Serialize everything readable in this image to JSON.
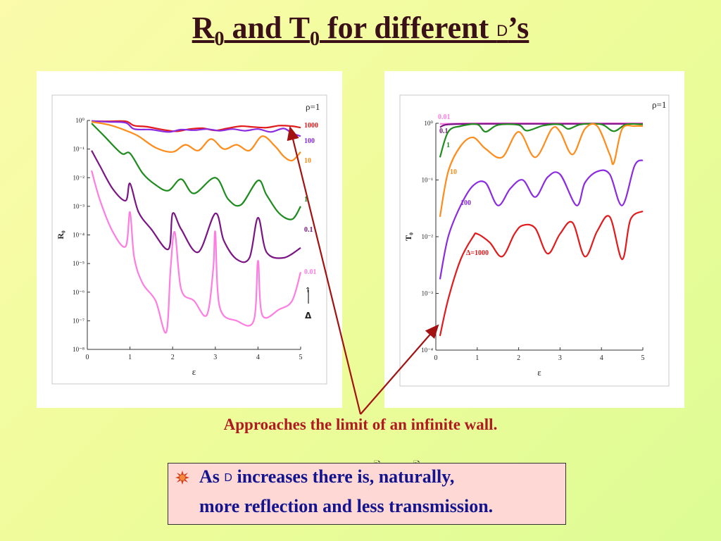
{
  "slide": {
    "title_r": "R",
    "title_sub0": "0",
    "title_and": " and T",
    "title_sub1": "0",
    "title_for": " for  different ",
    "title_delta": "D",
    "title_suffix": "’s",
    "caption": "Approaches the limit of an infinite wall.",
    "bullet_line1_a": "As ",
    "bullet_line1_delta": "D",
    "bullet_line1_b": " increases there is, naturally,",
    "bullet_line2": "more reflection and less transmission.",
    "bullet_icon": "starburst-bullet-icon",
    "note_icon": "note-icon",
    "arrow_color": "#a31212"
  },
  "chart_data": [
    {
      "type": "line",
      "panel": "left",
      "ylabel": "R₀",
      "xlabel": "ε",
      "xlim": [
        0,
        5
      ],
      "y_scale": "log",
      "ylim_exp": [
        -8,
        0
      ],
      "xticks": [
        "0",
        "1",
        "2",
        "3",
        "4",
        "5"
      ],
      "yticks": [
        "10⁰",
        "10⁻¹",
        "10⁻²",
        "10⁻³",
        "10⁻⁴",
        "10⁻⁵",
        "10⁻⁶",
        "10⁻⁷",
        "10⁻⁸"
      ],
      "annotation_rho": "ρ=1",
      "annotation_arrow": "↑",
      "annotation_delta": "Δ",
      "series": [
        {
          "name": "1000",
          "color": "#e31a1c",
          "x": [
            0.1,
            0.5,
            0.9,
            1.1,
            1.4,
            1.8,
            2.1,
            2.4,
            2.7,
            3.0,
            3.3,
            3.6,
            3.9,
            4.2,
            4.5,
            4.8,
            5.0
          ],
          "log10": [
            -0.02,
            -0.03,
            -0.03,
            -0.18,
            -0.22,
            -0.33,
            -0.38,
            -0.3,
            -0.27,
            -0.35,
            -0.27,
            -0.2,
            -0.23,
            -0.25,
            -0.18,
            -0.2,
            -0.25
          ]
        },
        {
          "name": "100",
          "color": "#8a2be2",
          "x": [
            0.1,
            0.5,
            0.9,
            1.1,
            1.5,
            1.9,
            2.2,
            2.5,
            2.8,
            3.1,
            3.4,
            3.7,
            4.0,
            4.3,
            4.6,
            4.8,
            5.0
          ],
          "log10": [
            -0.02,
            -0.05,
            -0.08,
            -0.3,
            -0.32,
            -0.4,
            -0.32,
            -0.34,
            -0.3,
            -0.36,
            -0.3,
            -0.36,
            -0.3,
            -0.4,
            -0.28,
            -0.45,
            -0.55
          ]
        },
        {
          "name": "10",
          "color": "#ff8c1a",
          "x": [
            0.1,
            0.5,
            0.9,
            1.2,
            1.6,
            2.0,
            2.3,
            2.6,
            2.9,
            3.2,
            3.5,
            3.8,
            4.1,
            4.4,
            4.6,
            4.8,
            5.0
          ],
          "log10": [
            -0.05,
            -0.15,
            -0.35,
            -0.55,
            -0.95,
            -1.1,
            -0.85,
            -1.05,
            -0.65,
            -1.0,
            -0.85,
            -1.05,
            -0.55,
            -0.9,
            -1.25,
            -1.4,
            -1.1
          ]
        },
        {
          "name": "1",
          "color": "#1f8c1f",
          "x": [
            0.1,
            0.4,
            0.8,
            1.0,
            1.3,
            1.6,
            1.9,
            2.2,
            2.5,
            3.0,
            3.3,
            3.6,
            4.0,
            4.2,
            4.5,
            4.8,
            5.0
          ],
          "log10": [
            -0.1,
            -0.55,
            -1.15,
            -1.15,
            -1.85,
            -2.25,
            -2.45,
            -2.05,
            -2.55,
            -2.0,
            -2.75,
            -2.95,
            -2.1,
            -2.6,
            -3.25,
            -3.45,
            -3.0
          ]
        },
        {
          "name": "0.1",
          "color": "#7b1585",
          "x": [
            0.1,
            0.3,
            0.6,
            0.9,
            1.0,
            1.2,
            1.5,
            1.9,
            2.0,
            2.2,
            2.6,
            3.0,
            3.2,
            3.5,
            3.8,
            4.0,
            4.2,
            4.6,
            5.0
          ],
          "log10": [
            -1.05,
            -1.6,
            -2.4,
            -2.8,
            -2.2,
            -3.2,
            -3.8,
            -4.5,
            -3.25,
            -3.8,
            -4.6,
            -3.25,
            -4.2,
            -4.85,
            -4.8,
            -3.4,
            -4.6,
            -4.8,
            -4.45
          ]
        },
        {
          "name": "0.01",
          "color": "#ff7de1",
          "x": [
            0.1,
            0.3,
            0.6,
            0.9,
            1.0,
            1.1,
            1.3,
            1.6,
            1.85,
            1.95,
            2.05,
            2.2,
            2.5,
            2.8,
            2.95,
            3.0,
            3.1,
            3.5,
            3.9,
            4.0,
            4.1,
            4.5,
            4.8,
            5.0
          ],
          "log10": [
            -1.75,
            -2.8,
            -3.9,
            -4.4,
            -3.2,
            -4.8,
            -5.7,
            -6.3,
            -7.4,
            -5.2,
            -3.9,
            -5.9,
            -6.3,
            -6.8,
            -5.2,
            -3.9,
            -6.5,
            -7.0,
            -7.0,
            -4.9,
            -6.8,
            -6.6,
            -6.3,
            -5.3
          ]
        }
      ]
    },
    {
      "type": "line",
      "panel": "right",
      "ylabel": "T₀",
      "xlabel": "ε",
      "xlim": [
        0,
        5
      ],
      "y_scale": "log",
      "ylim_exp": [
        -4,
        0
      ],
      "xticks": [
        "0",
        "1",
        "2",
        "3",
        "4",
        "5"
      ],
      "yticks": [
        "10⁰",
        "10⁻¹",
        "10⁻²",
        "10⁻³",
        "10⁻⁴"
      ],
      "annotation_rho": "ρ=1",
      "series": [
        {
          "name": "0.01",
          "color": "#ff7de1",
          "x": [
            0.1,
            1.0,
            2.0,
            3.0,
            4.0,
            5.0
          ],
          "log10": [
            -0.01,
            0.0,
            0.0,
            0.0,
            0.0,
            0.0
          ]
        },
        {
          "name": "0.1",
          "color": "#7b1585",
          "x": [
            0.1,
            0.3,
            1.0,
            2.0,
            3.0,
            4.0,
            5.0
          ],
          "log10": [
            -0.07,
            -0.02,
            -0.01,
            -0.01,
            -0.01,
            -0.01,
            -0.01
          ]
        },
        {
          "name": "1",
          "color": "#1f8c1f",
          "x": [
            0.1,
            0.3,
            0.6,
            1.0,
            1.2,
            1.5,
            2.0,
            2.2,
            2.6,
            3.0,
            3.2,
            3.5,
            4.0,
            4.3,
            4.6,
            5.0
          ],
          "log10": [
            -0.6,
            -0.15,
            -0.05,
            -0.02,
            -0.15,
            -0.03,
            -0.03,
            -0.13,
            -0.04,
            -0.02,
            -0.1,
            -0.02,
            -0.02,
            -0.14,
            -0.02,
            -0.02
          ]
        },
        {
          "name": "10",
          "color": "#ff8c1a",
          "x": [
            0.1,
            0.3,
            0.6,
            0.9,
            1.2,
            1.6,
            2.0,
            2.4,
            2.8,
            3.0,
            3.3,
            3.6,
            3.9,
            4.2,
            4.3,
            4.5,
            4.8,
            5.0
          ],
          "log10": [
            -1.65,
            -0.85,
            -0.4,
            -0.25,
            -0.45,
            -0.6,
            -0.15,
            -0.6,
            -0.1,
            -0.15,
            -0.55,
            -0.1,
            -0.05,
            -0.55,
            -0.7,
            -0.1,
            -0.05,
            -0.05
          ]
        },
        {
          "name": "100",
          "color": "#8a2be2",
          "x": [
            0.1,
            0.3,
            0.6,
            0.9,
            1.2,
            1.5,
            1.8,
            2.1,
            2.4,
            2.7,
            3.0,
            3.4,
            3.6,
            3.9,
            4.2,
            4.5,
            4.8,
            5.0
          ],
          "log10": [
            -2.75,
            -2.0,
            -1.45,
            -1.1,
            -1.05,
            -1.45,
            -1.15,
            -1.0,
            -1.3,
            -0.95,
            -0.9,
            -1.45,
            -1.05,
            -0.85,
            -0.9,
            -1.45,
            -0.75,
            -0.65
          ]
        },
        {
          "name": "Δ=1000",
          "color": "#e31a1c",
          "x": [
            0.1,
            0.3,
            0.6,
            0.9,
            1.0,
            1.3,
            1.6,
            1.9,
            2.1,
            2.4,
            2.7,
            3.0,
            3.3,
            3.6,
            3.9,
            4.2,
            4.5,
            4.7,
            5.0
          ],
          "log10": [
            -3.75,
            -3.1,
            -2.4,
            -2.0,
            -1.95,
            -2.1,
            -2.35,
            -1.95,
            -1.8,
            -1.85,
            -2.3,
            -1.95,
            -1.75,
            -2.35,
            -1.9,
            -1.65,
            -2.4,
            -1.7,
            -1.55
          ]
        }
      ]
    }
  ]
}
